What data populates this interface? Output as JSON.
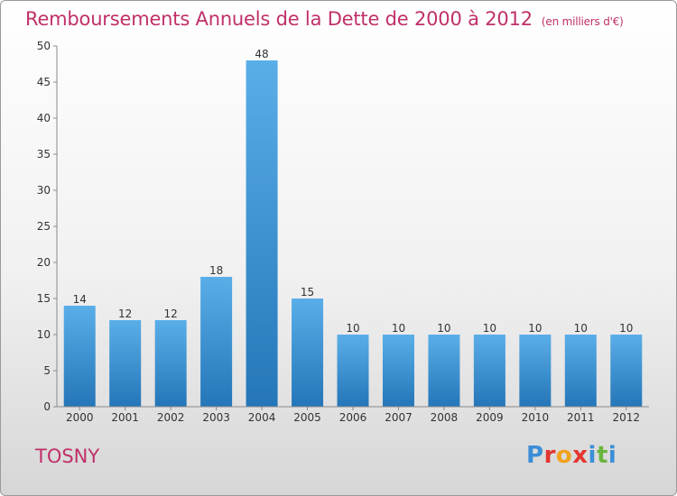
{
  "title": "Remboursements Annuels de la Dette de 2000 à 2012",
  "unit_label": "(en milliers d'€)",
  "town": "TOSNY",
  "logo": {
    "letters": [
      "P",
      "r",
      "o",
      "x",
      "i",
      "t",
      "i"
    ],
    "colors": [
      "#3b8ed8",
      "#e3362f",
      "#f2a21b",
      "#e3362f",
      "#3b8ed8",
      "#6ab63e",
      "#3b8ed8"
    ]
  },
  "chart_data": {
    "type": "bar",
    "categories": [
      "2000",
      "2001",
      "2002",
      "2003",
      "2004",
      "2005",
      "2006",
      "2007",
      "2008",
      "2009",
      "2010",
      "2011",
      "2012"
    ],
    "values": [
      14,
      12,
      12,
      18,
      48,
      15,
      10,
      10,
      10,
      10,
      10,
      10,
      10
    ],
    "ylim": [
      0,
      50
    ],
    "yticks": [
      0,
      5,
      10,
      15,
      20,
      25,
      30,
      35,
      40,
      45,
      50
    ],
    "grid": false,
    "bar_color": "#3d93d8"
  }
}
